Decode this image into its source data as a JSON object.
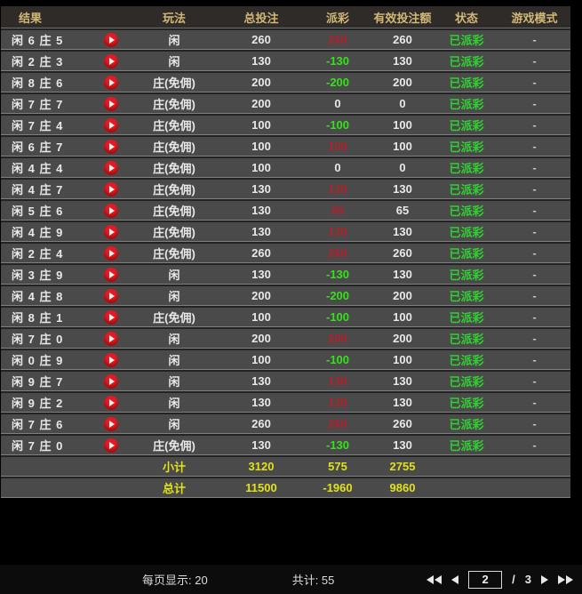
{
  "colors": {
    "payout_win": "#b2202c",
    "payout_loss": "#35e01c",
    "status_green": "#2fd32f",
    "totals_yellow": "#e2e218",
    "header_text": "#d3b776",
    "row_bg": "#4a4a4a"
  },
  "icons": {
    "row_action": "play-icon",
    "first_page": "double-left-triangle-icon",
    "prev_page": "left-triangle-icon",
    "next_page": "right-triangle-icon",
    "last_page": "double-right-triangle-icon"
  },
  "table": {
    "columns": {
      "result": "结果",
      "play": "玩法",
      "total_bet": "总投注",
      "payout": "派彩",
      "valid_bet": "有效投注额",
      "status": "状态",
      "game_mode": "游戏模式"
    },
    "rows": [
      {
        "result": "闲 6 庄 5",
        "play": "闲",
        "total_bet": "260",
        "payout": "260",
        "payout_class": "pos",
        "valid_bet": "260",
        "status": "已派彩",
        "game_mode": "-"
      },
      {
        "result": "闲 2 庄 3",
        "play": "闲",
        "total_bet": "130",
        "payout": "-130",
        "payout_class": "neg",
        "valid_bet": "130",
        "status": "已派彩",
        "game_mode": "-"
      },
      {
        "result": "闲 8 庄 6",
        "play": "庄(免佣)",
        "total_bet": "200",
        "payout": "-200",
        "payout_class": "neg",
        "valid_bet": "200",
        "status": "已派彩",
        "game_mode": "-"
      },
      {
        "result": "闲 7 庄 7",
        "play": "庄(免佣)",
        "total_bet": "200",
        "payout": "0",
        "payout_class": "zero",
        "valid_bet": "0",
        "status": "已派彩",
        "game_mode": "-"
      },
      {
        "result": "闲 7 庄 4",
        "play": "庄(免佣)",
        "total_bet": "100",
        "payout": "-100",
        "payout_class": "neg",
        "valid_bet": "100",
        "status": "已派彩",
        "game_mode": "-"
      },
      {
        "result": "闲 6 庄 7",
        "play": "庄(免佣)",
        "total_bet": "100",
        "payout": "100",
        "payout_class": "pos",
        "valid_bet": "100",
        "status": "已派彩",
        "game_mode": "-"
      },
      {
        "result": "闲 4 庄 4",
        "play": "庄(免佣)",
        "total_bet": "100",
        "payout": "0",
        "payout_class": "zero",
        "valid_bet": "0",
        "status": "已派彩",
        "game_mode": "-"
      },
      {
        "result": "闲 4 庄 7",
        "play": "庄(免佣)",
        "total_bet": "130",
        "payout": "130",
        "payout_class": "pos",
        "valid_bet": "130",
        "status": "已派彩",
        "game_mode": "-"
      },
      {
        "result": "闲 5 庄 6",
        "play": "庄(免佣)",
        "total_bet": "130",
        "payout": "65",
        "payout_class": "pos",
        "valid_bet": "65",
        "status": "已派彩",
        "game_mode": "-"
      },
      {
        "result": "闲 4 庄 9",
        "play": "庄(免佣)",
        "total_bet": "130",
        "payout": "130",
        "payout_class": "pos",
        "valid_bet": "130",
        "status": "已派彩",
        "game_mode": "-"
      },
      {
        "result": "闲 2 庄 4",
        "play": "庄(免佣)",
        "total_bet": "260",
        "payout": "260",
        "payout_class": "pos",
        "valid_bet": "260",
        "status": "已派彩",
        "game_mode": "-"
      },
      {
        "result": "闲 3 庄 9",
        "play": "闲",
        "total_bet": "130",
        "payout": "-130",
        "payout_class": "neg",
        "valid_bet": "130",
        "status": "已派彩",
        "game_mode": "-"
      },
      {
        "result": "闲 4 庄 8",
        "play": "闲",
        "total_bet": "200",
        "payout": "-200",
        "payout_class": "neg",
        "valid_bet": "200",
        "status": "已派彩",
        "game_mode": "-"
      },
      {
        "result": "闲 8 庄 1",
        "play": "庄(免佣)",
        "total_bet": "100",
        "payout": "-100",
        "payout_class": "neg",
        "valid_bet": "100",
        "status": "已派彩",
        "game_mode": "-"
      },
      {
        "result": "闲 7 庄 0",
        "play": "闲",
        "total_bet": "200",
        "payout": "200",
        "payout_class": "pos",
        "valid_bet": "200",
        "status": "已派彩",
        "game_mode": "-"
      },
      {
        "result": "闲 0 庄 9",
        "play": "闲",
        "total_bet": "100",
        "payout": "-100",
        "payout_class": "neg",
        "valid_bet": "100",
        "status": "已派彩",
        "game_mode": "-"
      },
      {
        "result": "闲 9 庄 7",
        "play": "闲",
        "total_bet": "130",
        "payout": "130",
        "payout_class": "pos",
        "valid_bet": "130",
        "status": "已派彩",
        "game_mode": "-"
      },
      {
        "result": "闲 9 庄 2",
        "play": "闲",
        "total_bet": "130",
        "payout": "130",
        "payout_class": "pos",
        "valid_bet": "130",
        "status": "已派彩",
        "game_mode": "-"
      },
      {
        "result": "闲 7 庄 6",
        "play": "闲",
        "total_bet": "260",
        "payout": "260",
        "payout_class": "pos",
        "valid_bet": "260",
        "status": "已派彩",
        "game_mode": "-"
      },
      {
        "result": "闲 7 庄 0",
        "play": "庄(免佣)",
        "total_bet": "130",
        "payout": "-130",
        "payout_class": "neg",
        "valid_bet": "130",
        "status": "已派彩",
        "game_mode": "-"
      }
    ],
    "subtotal": {
      "label": "小计",
      "total_bet": "3120",
      "payout": "575",
      "valid_bet": "2755"
    },
    "total": {
      "label": "总计",
      "total_bet": "11500",
      "payout": "-1960",
      "valid_bet": "9860"
    }
  },
  "footer": {
    "per_page_label": "每页显示: 20",
    "total_count_label": "共计: 55",
    "current_page": "2",
    "page_sep": "/",
    "total_pages": "3"
  }
}
